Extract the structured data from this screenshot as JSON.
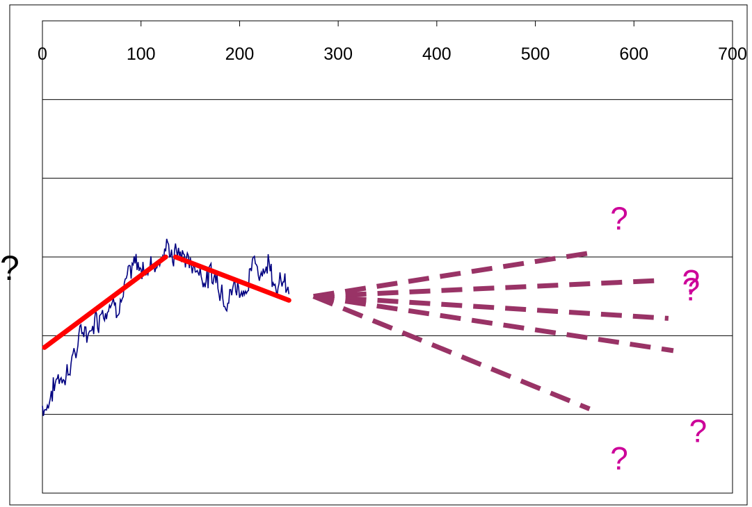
{
  "chart_data": {
    "type": "line",
    "title": "",
    "ylabel": "?",
    "xlabel": "",
    "x_ticks": [
      0,
      100,
      200,
      300,
      400,
      500,
      600,
      700
    ],
    "xlim": [
      0,
      700
    ],
    "ylim": [
      0,
      6
    ],
    "grid": true,
    "x_axis_position": "top",
    "colors": {
      "series": "#000080",
      "trend": "#ff0000",
      "forecast": "#993366",
      "question": "#cc0099"
    },
    "series": [
      {
        "type": "noisy-walk",
        "seed": 7,
        "x_start": 0,
        "x_end": 250,
        "knots": [
          [
            0,
            1.1
          ],
          [
            60,
            2.4
          ],
          [
            125,
            3.1
          ],
          [
            140,
            3.05
          ],
          [
            170,
            2.75
          ],
          [
            200,
            2.65
          ],
          [
            230,
            3.0
          ],
          [
            250,
            2.5
          ]
        ],
        "noise": 0.06
      }
    ],
    "trend_lines": [
      {
        "points": [
          [
            2,
            1.85
          ],
          [
            125,
            3.0
          ]
        ]
      },
      {
        "points": [
          [
            135,
            3.0
          ],
          [
            250,
            2.45
          ]
        ]
      }
    ],
    "forecasts": [
      {
        "from": [
          275,
          2.5
        ],
        "to": [
          555,
          3.05
        ]
      },
      {
        "from": [
          275,
          2.5
        ],
        "to": [
          625,
          2.7
        ]
      },
      {
        "from": [
          275,
          2.5
        ],
        "to": [
          635,
          2.22
        ]
      },
      {
        "from": [
          275,
          2.5
        ],
        "to": [
          640,
          1.81
        ]
      },
      {
        "from": [
          275,
          2.5
        ],
        "to": [
          555,
          1.07
        ]
      }
    ],
    "annotations": [
      {
        "text": "?",
        "x": 585,
        "y": 3.35
      },
      {
        "text": "?",
        "x": 658,
        "y": 2.45
      },
      {
        "text": "?",
        "x": 658,
        "y": 2.55
      },
      {
        "text": "?",
        "x": 665,
        "y": 0.65
      },
      {
        "text": "?",
        "x": 585,
        "y": 0.3
      }
    ]
  }
}
